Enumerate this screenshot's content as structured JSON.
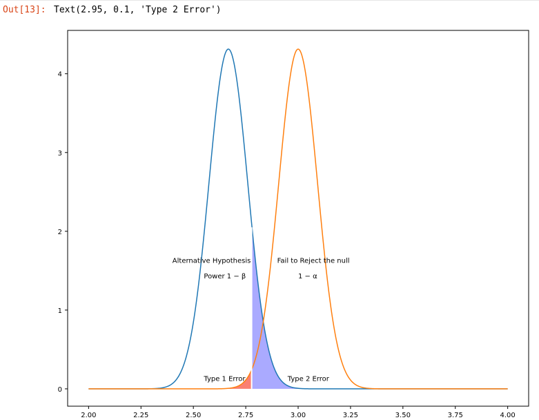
{
  "cell": {
    "prompt": "Out[13]:",
    "output_text": "Text(2.95, 0.1, 'Type 2 Error')"
  },
  "chart_data": {
    "type": "line",
    "xlim": [
      1.9,
      4.1
    ],
    "ylim": [
      -0.22,
      4.55
    ],
    "xticks": [
      2.0,
      2.25,
      2.5,
      2.75,
      3.0,
      3.25,
      3.5,
      3.75,
      4.0
    ],
    "xtick_labels": [
      "2.00",
      "2.25",
      "2.50",
      "2.75",
      "3.00",
      "3.25",
      "3.50",
      "3.75",
      "4.00"
    ],
    "yticks": [
      0,
      1,
      2,
      3,
      4
    ],
    "ytick_labels": [
      "0",
      "1",
      "2",
      "3",
      "4"
    ],
    "grid": false,
    "x_range": [
      2.0,
      4.0
    ],
    "series": [
      {
        "mean": 2.667,
        "sd": 0.0925,
        "color": "#1f77b4"
      },
      {
        "mean": 3.0,
        "sd": 0.0925,
        "color": "#ff7f0e"
      }
    ],
    "critical_value": 2.778,
    "critical_line_color": "#ffffff",
    "fills": [
      {
        "from": 2.778,
        "to": 4.0,
        "under": 0,
        "color": "#aaaaff"
      },
      {
        "from": 2.0,
        "to": 2.778,
        "under": 1,
        "color": "#fa8072"
      }
    ],
    "annotations": [
      {
        "x": 2.4,
        "y": 1.6,
        "text": "Alternative Hypothesis"
      },
      {
        "x": 2.55,
        "y": 1.4,
        "text": "Power 1 − β"
      },
      {
        "x": 2.9,
        "y": 1.6,
        "text": "Fail to Reject the null"
      },
      {
        "x": 3.0,
        "y": 1.4,
        "text": "1 − α"
      },
      {
        "x": 2.55,
        "y": 0.1,
        "text": "Type 1 Error"
      },
      {
        "x": 2.95,
        "y": 0.1,
        "text": "Type 2 Error"
      }
    ]
  }
}
